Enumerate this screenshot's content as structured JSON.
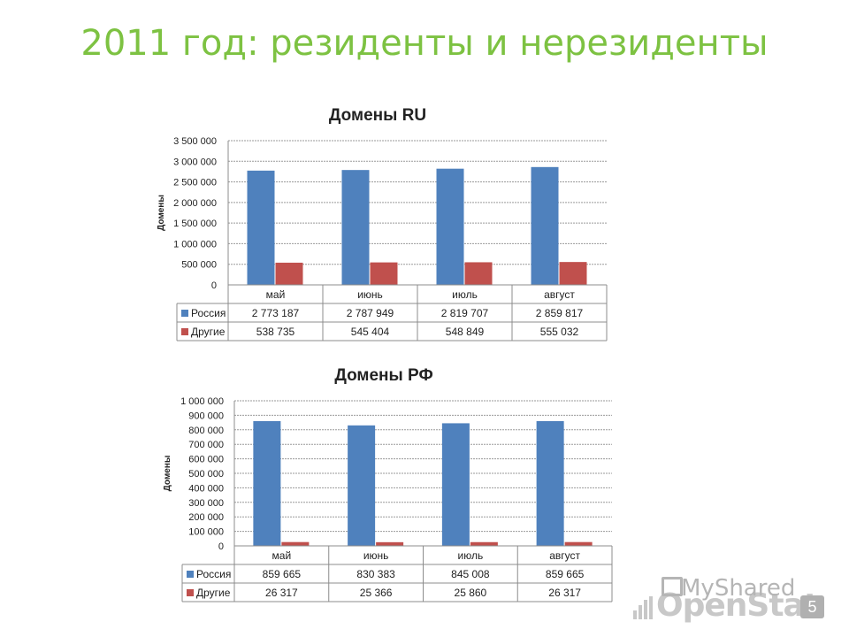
{
  "slide": {
    "title": "2011 год: резиденты и нерезиденты",
    "number": "5"
  },
  "watermark": {
    "brand": "OpenStat",
    "overlay": "MyShared"
  },
  "chart_data": [
    {
      "type": "bar",
      "title": "Домены RU",
      "ylabel": "Домены",
      "xlabel": "",
      "categories": [
        "май",
        "июнь",
        "июль",
        "август"
      ],
      "ylim": [
        0,
        3500000
      ],
      "yticks": [
        "0",
        "500 000",
        "1 000 000",
        "1 500 000",
        "2 000 000",
        "2 500 000",
        "3 000 000",
        "3 500 000"
      ],
      "grid": true,
      "legend": "data-table",
      "series": [
        {
          "name": "Россия",
          "color": "#4f81bd",
          "values": [
            2773187,
            2787949,
            2819707,
            2859817
          ],
          "labels": [
            "2 773 187",
            "2 787 949",
            "2 819 707",
            "2 859 817"
          ]
        },
        {
          "name": "Другие",
          "color": "#c0504d",
          "values": [
            538735,
            545404,
            548849,
            555032
          ],
          "labels": [
            "538 735",
            "545 404",
            "548 849",
            "555 032"
          ]
        }
      ]
    },
    {
      "type": "bar",
      "title": "Домены РФ",
      "ylabel": "Домены",
      "xlabel": "",
      "categories": [
        "май",
        "июнь",
        "июль",
        "август"
      ],
      "ylim": [
        0,
        1000000
      ],
      "yticks": [
        "0",
        "100 000",
        "200 000",
        "300 000",
        "400 000",
        "500 000",
        "600 000",
        "700 000",
        "800 000",
        "900 000",
        "1 000 000"
      ],
      "grid": true,
      "legend": "data-table",
      "series": [
        {
          "name": "Россия",
          "color": "#4f81bd",
          "values": [
            859665,
            830383,
            845008,
            859665
          ],
          "labels": [
            "859 665",
            "830 383",
            "845 008",
            "859 665"
          ]
        },
        {
          "name": "Другие",
          "color": "#c0504d",
          "values": [
            26317,
            25366,
            25860,
            26317
          ],
          "labels": [
            "26 317",
            "25 366",
            "25 860",
            "26 317"
          ]
        }
      ]
    }
  ]
}
